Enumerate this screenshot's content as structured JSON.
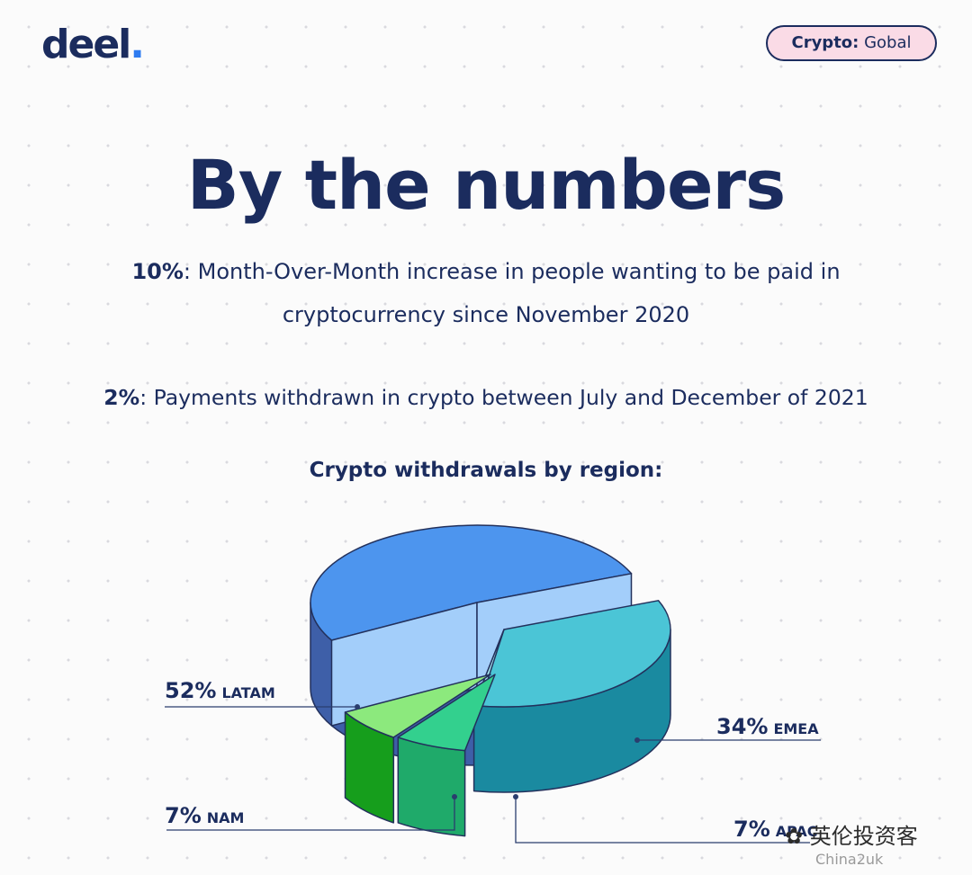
{
  "brand": {
    "name": "deel",
    "dot": "."
  },
  "tag": {
    "key": "Crypto:",
    "value": " Gobal"
  },
  "heading": "By the numbers",
  "stats": [
    {
      "value": "10%",
      "text": ": Month-Over-Month increase in people wanting to be paid in cryptocurrency since November 2020"
    },
    {
      "value": "2%",
      "text": ": Payments withdrawn in crypto between July and December of 2021"
    }
  ],
  "watermark": "英伦投资客",
  "watermark_sub": "China2uk",
  "chart_data": {
    "type": "pie",
    "title": "Crypto withdrawals by region:",
    "slices": [
      {
        "label": "LATAM",
        "value": 52,
        "value_label": "52%",
        "top_color": "#4d95ee",
        "side_color": "#3e5fa8"
      },
      {
        "label": "EMEA",
        "value": 34,
        "value_label": "34%",
        "top_color": "#4bc5d6",
        "side_color": "#1a8aa0"
      },
      {
        "label": "NAM",
        "value": 7,
        "value_label": "7%",
        "top_color": "#8ce97d",
        "side_color": "#169e1c"
      },
      {
        "label": "APAC",
        "value": 7,
        "value_label": "7%",
        "top_color": "#33d08e",
        "side_color": "#1faa6a"
      }
    ],
    "exploded_colors": {
      "latam": "#a3cefa",
      "emea": "#a5e4ee"
    }
  }
}
